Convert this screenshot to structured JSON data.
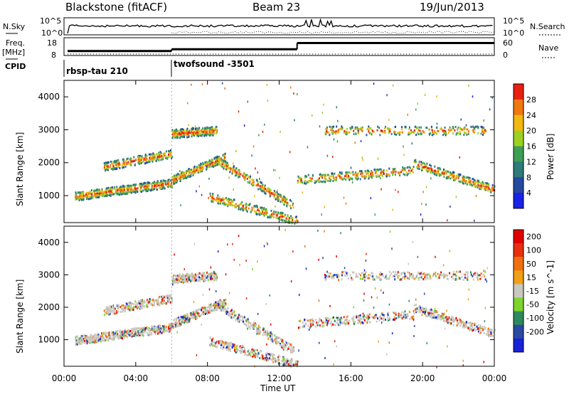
{
  "header": {
    "title": "Blackstone (fitACF)",
    "beam": "Beam 23",
    "date": "19/Jun/2013"
  },
  "status_panel": {
    "nsky_label": "N.Sky",
    "nsearch_label": "N.Search",
    "freq_label": "Freq.",
    "freq_unit": "[MHz]",
    "nave_label": "Nave",
    "cpid_label": "CPID",
    "noise_ticks": [
      "10^5",
      "10^0"
    ],
    "freq_ticks": [
      "18",
      "8"
    ],
    "nave_ticks": [
      "60",
      "0"
    ],
    "cpid_segments": [
      {
        "name": "rbsp-tau 210",
        "start_hour": 0,
        "end_hour": 6
      },
      {
        "name": "twofsound -3501",
        "start_hour": 6,
        "end_hour": 24
      }
    ],
    "freq_steps": [
      {
        "start_hour": 0.2,
        "end_hour": 6,
        "value": 10.5
      },
      {
        "start_hour": 6,
        "end_hour": 13,
        "value": 11.5
      },
      {
        "start_hour": 13,
        "end_hour": 24,
        "value": 15
      }
    ]
  },
  "chart_data": [
    {
      "type": "heatmap",
      "parameter": "power",
      "ylabel": "Slant Range [km]",
      "xlim": [
        0,
        24
      ],
      "ylim": [
        180,
        4500
      ],
      "yticks": [
        1000,
        2000,
        3000,
        4000
      ],
      "colorbar": {
        "label": "Power [dB]",
        "ticks": [
          4,
          8,
          12,
          16,
          20,
          24,
          28
        ],
        "colors": [
          "#1a22e6",
          "#26489e",
          "#2f7a7a",
          "#3e9e56",
          "#9ed022",
          "#f0b810",
          "#f07810",
          "#e82010"
        ]
      }
    },
    {
      "type": "heatmap",
      "parameter": "velocity",
      "ylabel": "Slant Range [km]",
      "xlabel": "Time UT",
      "xlim": [
        0,
        24
      ],
      "ylim": [
        180,
        4500
      ],
      "xticks": [
        "00:00",
        "04:00",
        "08:00",
        "12:00",
        "16:00",
        "20:00",
        "00:00"
      ],
      "yticks": [
        1000,
        2000,
        3000,
        4000
      ],
      "colorbar": {
        "label": "Velocity [m s^-1]",
        "ticks": [
          "200",
          "100",
          "50",
          "15",
          "-15",
          "-50",
          "-100",
          "-200"
        ],
        "colors": [
          "#1a22d8",
          "#2a4aa0",
          "#2e8a5e",
          "#7ed42e",
          "#c8c8c0",
          "#f0a018",
          "#f07010",
          "#e83010",
          "#e00000"
        ]
      }
    }
  ],
  "scatter_bands": [
    {
      "start_hour": 0.6,
      "end_hour": 3.2,
      "start_range": 1000,
      "end_range": 1200
    },
    {
      "start_hour": 3.2,
      "end_hour": 6.0,
      "start_range": 1200,
      "end_range": 1400
    },
    {
      "start_hour": 2.2,
      "end_hour": 6.0,
      "start_range": 1900,
      "end_range": 2300
    },
    {
      "start_hour": 6.0,
      "end_hour": 9.0,
      "start_range": 1500,
      "end_range": 2200
    },
    {
      "start_hour": 6.0,
      "end_hour": 8.5,
      "start_range": 2900,
      "end_range": 3000
    },
    {
      "start_hour": 8.5,
      "end_hour": 12.8,
      "start_range": 2100,
      "end_range": 700
    },
    {
      "start_hour": 8.0,
      "end_hour": 13.0,
      "start_range": 1000,
      "end_range": 250
    },
    {
      "start_hour": 13.0,
      "end_hour": 19.5,
      "start_range": 1500,
      "end_range": 1800
    },
    {
      "start_hour": 19.5,
      "end_hour": 24.0,
      "start_range": 2000,
      "end_range": 1200
    },
    {
      "start_hour": 14.5,
      "end_hour": 23.5,
      "start_range": 3000,
      "end_range": 3000
    }
  ]
}
